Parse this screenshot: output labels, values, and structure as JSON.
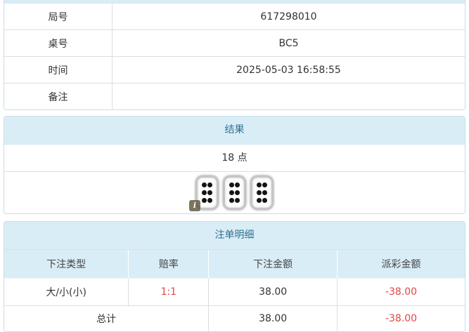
{
  "colors": {
    "header_bg": "#d9edf7",
    "header_text": "#31708f",
    "negative_text": "#e04545",
    "cell_border": "#dddddd",
    "panel_border": "#c9dde8"
  },
  "info_table": {
    "rows": [
      {
        "label": "局号",
        "value": "617298010"
      },
      {
        "label": "桌号",
        "value": "BC5"
      },
      {
        "label": "时间",
        "value": "2025-05-03 16:58:55"
      },
      {
        "label": "备注",
        "value": ""
      }
    ]
  },
  "result_panel": {
    "title": "结果",
    "points": "18 点",
    "dice": [
      6,
      6,
      6
    ],
    "info_icon": "i"
  },
  "bets_panel": {
    "title": "注单明细",
    "columns": [
      "下注类型",
      "赔率",
      "下注金额",
      "派彩金额"
    ],
    "rows": [
      {
        "type": "大/小(小)",
        "odds": "1:1",
        "amount": "38.00",
        "payout": "-38.00"
      }
    ],
    "total": {
      "label": "总计",
      "amount": "38.00",
      "payout": "-38.00"
    }
  }
}
